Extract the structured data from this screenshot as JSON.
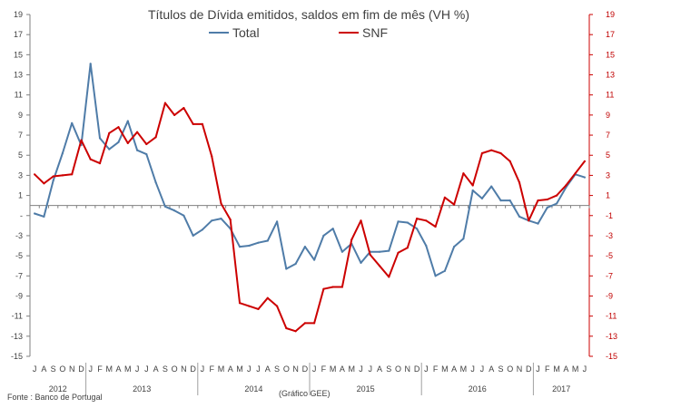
{
  "chart_data": {
    "type": "line",
    "title": "Títulos de Dívida emitidos, saldos em fim de mês  (VH %)",
    "x": [
      "J",
      "A",
      "S",
      "O",
      "N",
      "D",
      "J",
      "F",
      "M",
      "A",
      "M",
      "J",
      "J",
      "A",
      "S",
      "O",
      "N",
      "D",
      "J",
      "F",
      "M",
      "A",
      "M",
      "J",
      "J",
      "A",
      "S",
      "O",
      "N",
      "D",
      "J",
      "F",
      "M",
      "A",
      "M",
      "J",
      "J",
      "A",
      "S",
      "O",
      "N",
      "D",
      "J",
      "F",
      "M",
      "A",
      "M",
      "J",
      "J",
      "A",
      "S",
      "O",
      "N",
      "D",
      "J",
      "F",
      "M",
      "A",
      "M",
      "J"
    ],
    "year_labels": [
      {
        "label": "2012",
        "start": 0,
        "end": 5
      },
      {
        "label": "2013",
        "start": 6,
        "end": 17
      },
      {
        "label": "2014",
        "start": 18,
        "end": 29
      },
      {
        "label": "2015",
        "start": 30,
        "end": 41
      },
      {
        "label": "2016",
        "start": 42,
        "end": 53
      },
      {
        "label": "2017",
        "start": 54,
        "end": 59
      }
    ],
    "ylim": [
      -15,
      19
    ],
    "yticks": [
      19,
      17,
      15,
      13,
      11,
      9,
      7,
      5,
      3,
      1,
      -1,
      -3,
      -5,
      -7,
      -9,
      -11,
      -13,
      -15
    ],
    "ytick_labels": [
      "19",
      "17",
      "15",
      "13",
      "11",
      "9",
      "7",
      "5",
      "3",
      "1",
      "-",
      "-3",
      "-5",
      "-7",
      "-9",
      "-11",
      "-13",
      "-15"
    ],
    "ytick_labels_right": [
      "19",
      "17",
      "15",
      "13",
      "11",
      "9",
      "7",
      "5",
      "3",
      "1",
      "-1",
      "-3",
      "-5",
      "-7",
      "-9",
      "-11",
      "-13",
      "-15"
    ],
    "legend_position": "top-center",
    "series": [
      {
        "name": "Total",
        "color": "#4f7ca8",
        "values": [
          -0.8,
          -1.1,
          2.5,
          5.2,
          8.2,
          6.0,
          14.1,
          6.7,
          5.6,
          6.3,
          8.4,
          5.5,
          5.1,
          2.3,
          -0.1,
          -0.5,
          -1.0,
          -3.0,
          -2.4,
          -1.5,
          -1.3,
          -2.3,
          -4.1,
          -4.0,
          -3.7,
          -3.5,
          -1.6,
          -6.3,
          -5.8,
          -4.1,
          -5.4,
          -3.0,
          -2.3,
          -4.6,
          -3.8,
          -5.7,
          -4.6,
          -4.6,
          -4.5,
          -1.6,
          -1.7,
          -2.3,
          -4.0,
          -7.0,
          -6.5,
          -4.1,
          -3.3,
          1.5,
          0.7,
          1.9,
          0.5,
          0.5,
          -1.1,
          -1.5,
          -1.8,
          -0.2,
          0.2,
          1.8,
          3.1,
          2.8
        ]
      },
      {
        "name": "SNF",
        "color": "#cc0000",
        "values": [
          3.1,
          2.2,
          2.9,
          3.0,
          3.1,
          6.5,
          4.6,
          4.2,
          7.2,
          7.8,
          6.2,
          7.3,
          6.1,
          6.8,
          10.2,
          9.0,
          9.7,
          8.1,
          8.1,
          4.9,
          0.2,
          -1.4,
          -9.7,
          -10.0,
          -10.3,
          -9.2,
          -10.0,
          -12.2,
          -12.5,
          -11.7,
          -11.7,
          -8.3,
          -8.1,
          -8.1,
          -3.4,
          -1.5,
          -4.9,
          -6.0,
          -7.1,
          -4.7,
          -4.2,
          -1.3,
          -1.5,
          -2.1,
          0.8,
          0.1,
          3.2,
          2.0,
          5.2,
          5.5,
          5.2,
          4.4,
          2.3,
          -1.5,
          0.5,
          0.6,
          1.0,
          2.0,
          3.2,
          4.4
        ]
      }
    ]
  },
  "footer": {
    "source": "Fonte : Banco de Portugal",
    "credit": "(Gráfico GEE)"
  }
}
